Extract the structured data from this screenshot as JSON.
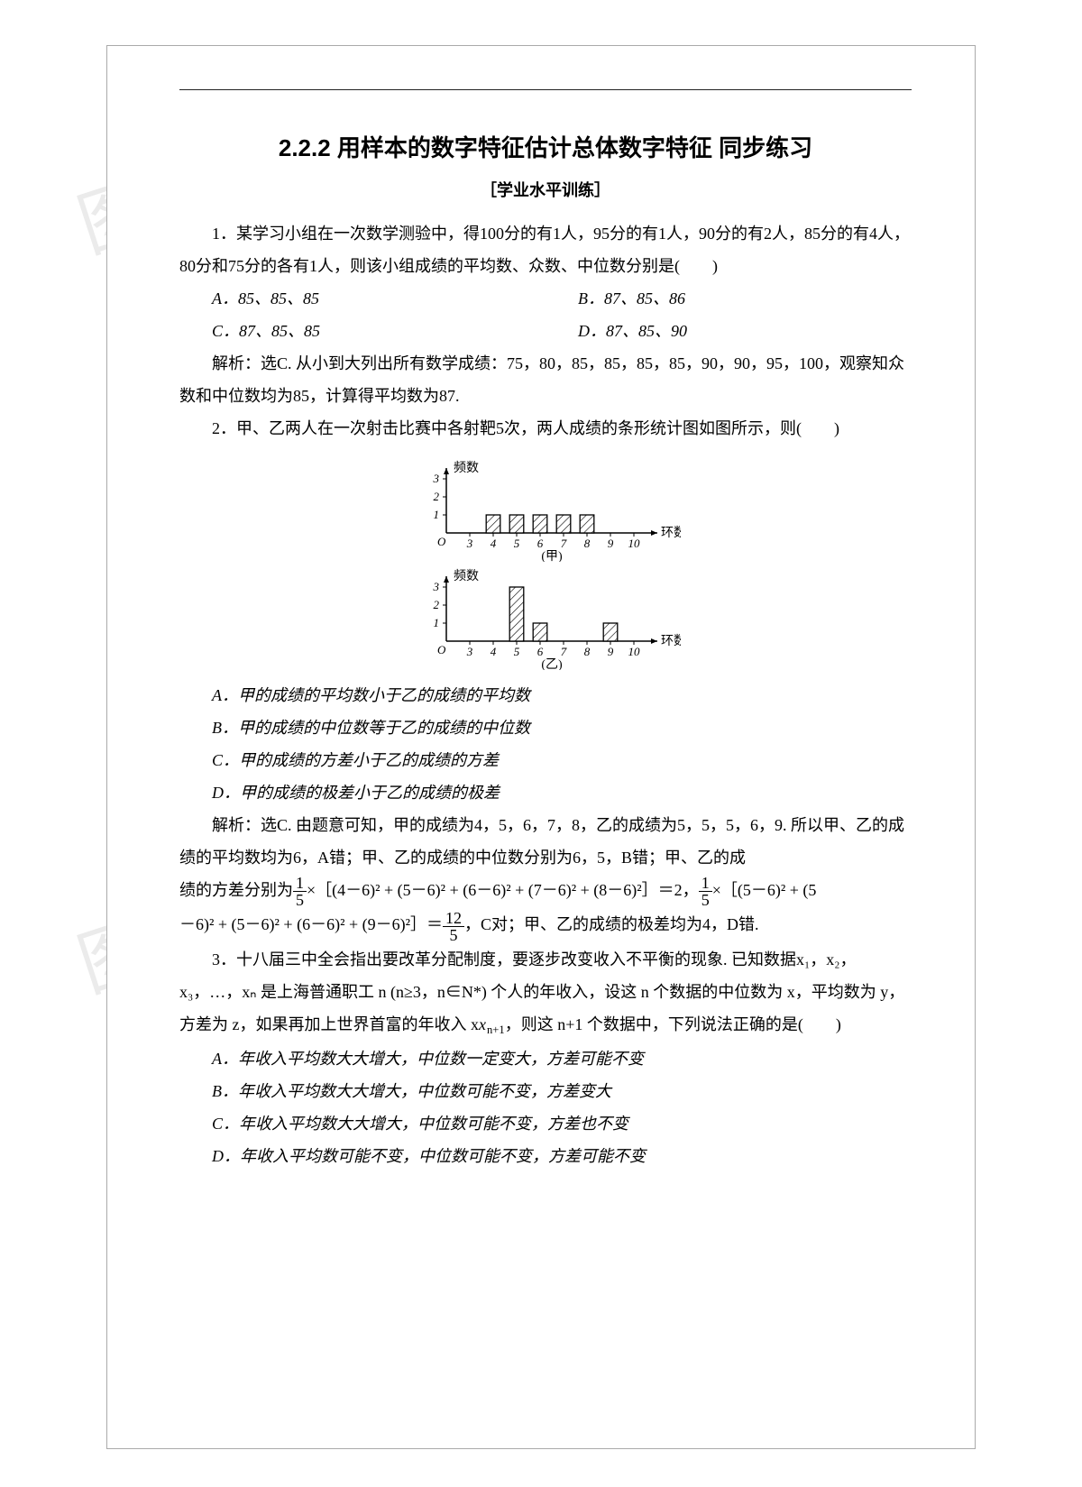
{
  "watermark": "图行天下",
  "title": "2.2.2  用样本的数字特征估计总体数字特征  同步练习",
  "subtitle": "［学业水平训练］",
  "q1": {
    "stem": "1．某学习小组在一次数学测验中，得100分的有1人，95分的有1人，90分的有2人，85分的有4人，80分和75分的各有1人，则该小组成绩的平均数、众数、中位数分别是(　　)",
    "opts": {
      "A": "A．85、85、85",
      "B": "B．87、85、86",
      "C": "C．87、85、85",
      "D": "D．87、85、90"
    },
    "ans": "解析：选C. 从小到大列出所有数学成绩：75，80，85，85，85，85，90，90，95，100，观察知众数和中位数均为85，计算得平均数为87."
  },
  "q2": {
    "stem": "2．甲、乙两人在一次射击比赛中各射靶5次，两人成绩的条形统计图如图所示，则(　　)",
    "opts": {
      "A": "A．甲的成绩的平均数小于乙的成绩的平均数",
      "B": "B．甲的成绩的中位数等于乙的成绩的中位数",
      "C": "C．甲的成绩的方差小于乙的成绩的方差",
      "D": "D．甲的成绩的极差小于乙的成绩的极差"
    },
    "ans_pre": "解析：选C. 由题意可知，甲的成绩为4，5，6，7，8，乙的成绩为5，5，5，6，9. 所以甲、乙的成绩的平均数均为6，A错；甲、乙的成绩的中位数分别为6，5，B错；甲、乙的成",
    "ans_mid1": "绩的方差分别为",
    "ans_mid2": "×［(4－6)² + (5－6)² + (6－6)² + (7－6)² + (8－6)²］＝2，",
    "ans_mid3": "×［(5－6)² + (5",
    "ans_end1": "－6)² + (5－6)² + (6－6)² + (9－6)²］＝",
    "ans_end2": "，C对；甲、乙的成绩的极差均为4，D错.",
    "frac15": {
      "num": "1",
      "den": "5"
    },
    "frac125": {
      "num": "12",
      "den": "5"
    }
  },
  "chart_jia": {
    "type": "bar",
    "ylabel": "频数",
    "xlabel": "环数",
    "caption": "(甲)",
    "xticks": [
      3,
      4,
      5,
      6,
      7,
      8,
      9,
      10
    ],
    "yticks": [
      1,
      2,
      3
    ],
    "bars": [
      {
        "x": 4,
        "h": 1
      },
      {
        "x": 5,
        "h": 1
      },
      {
        "x": 6,
        "h": 1
      },
      {
        "x": 7,
        "h": 1
      },
      {
        "x": 8,
        "h": 1
      }
    ],
    "axis_color": "#000000",
    "bar_stroke": "#000000",
    "hatch": true,
    "bar_width": 0.6
  },
  "chart_yi": {
    "type": "bar",
    "ylabel": "频数",
    "xlabel": "环数",
    "caption": "(乙)",
    "xticks": [
      3,
      4,
      5,
      6,
      7,
      8,
      9,
      10
    ],
    "yticks": [
      1,
      2,
      3
    ],
    "bars": [
      {
        "x": 5,
        "h": 3
      },
      {
        "x": 6,
        "h": 1
      },
      {
        "x": 9,
        "h": 1
      }
    ],
    "axis_color": "#000000",
    "bar_stroke": "#000000",
    "hatch": true,
    "bar_width": 0.6
  },
  "q3": {
    "stem_pre": "3．十八届三中全会指出要改革分配制度，要逐步改变收入不平衡的现象. 已知数据x₁，x₂，x₃，…，xₙ 是上海普通职工 n (n≥3，n∈N*) 个人的年收入，设这 n 个数据的中位数为 x，平均数为 y，方差为 z，如果再加上世界首富的年收入 x",
    "stem_sub": "n+1",
    "stem_post": "，则这 n+1 个数据中，下列说法正确的是(　　)",
    "opts": {
      "A": "A．年收入平均数大大增大，中位数一定变大，方差可能不变",
      "B": "B．年收入平均数大大增大，中位数可能不变，方差变大",
      "C": "C．年收入平均数大大增大，中位数可能不变，方差也不变",
      "D": "D．年收入平均数可能不变，中位数可能不变，方差可能不变"
    }
  }
}
